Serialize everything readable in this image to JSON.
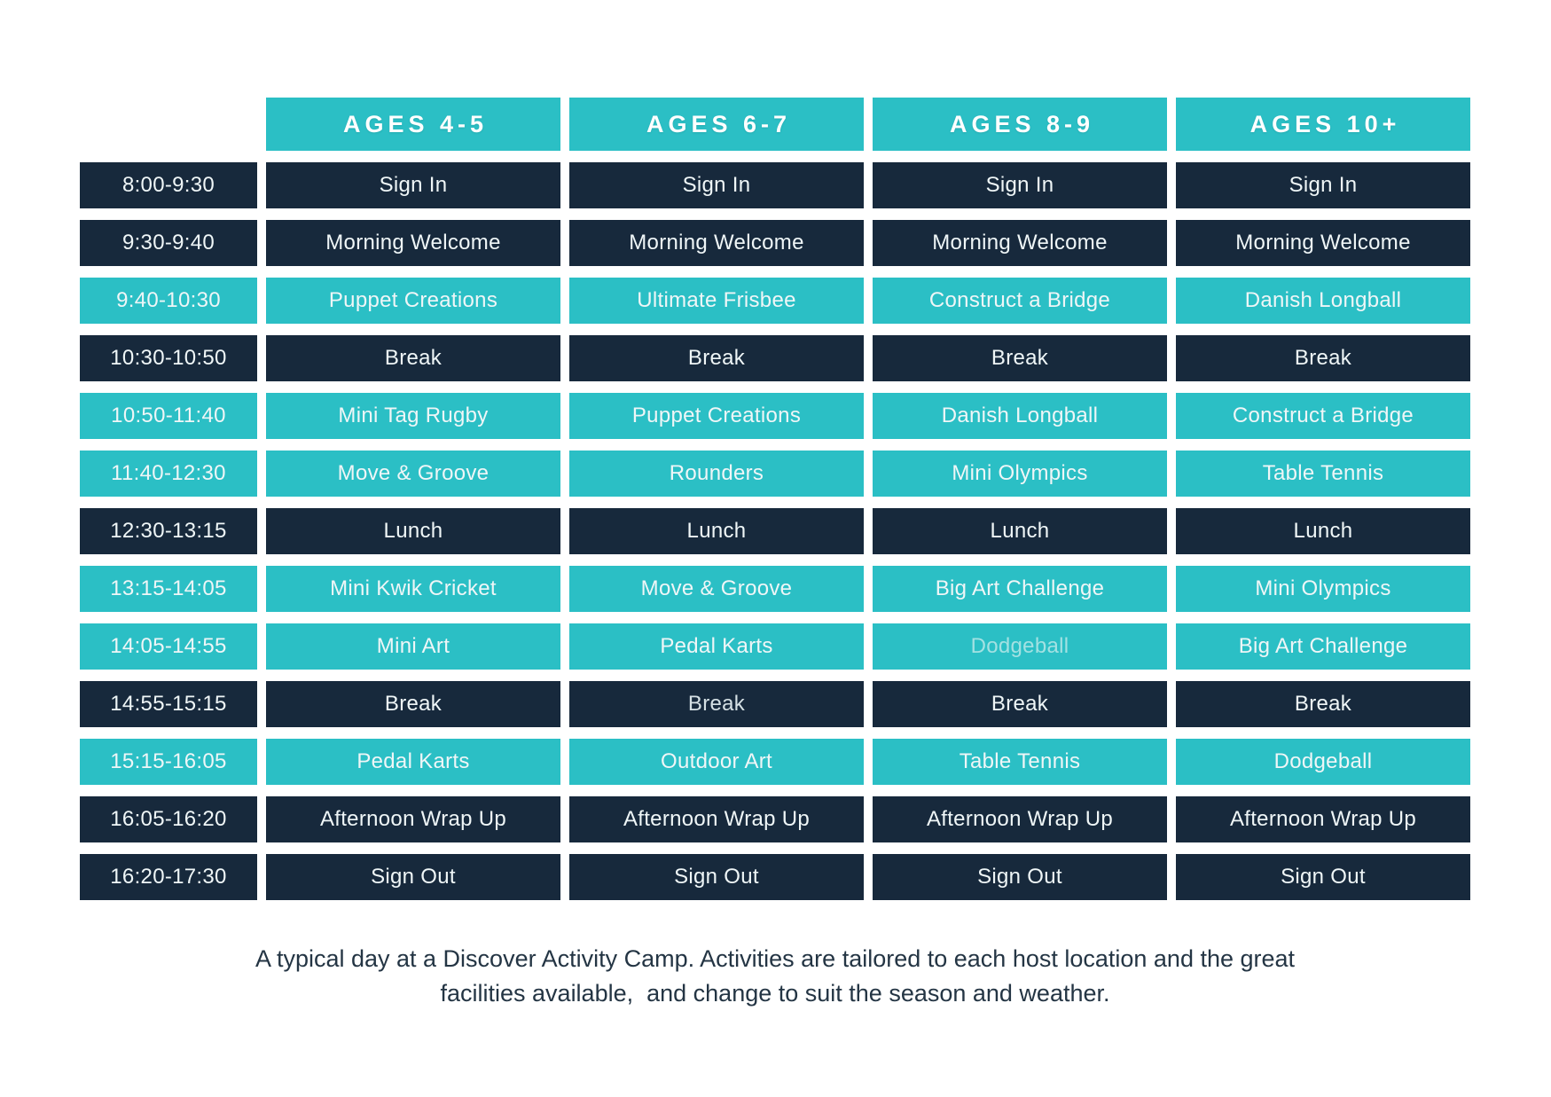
{
  "table": {
    "age_group_headers": [
      "AGES 4-5",
      "AGES 6-7",
      "AGES 8-9",
      "AGES 10+"
    ],
    "rows": [
      {
        "time": "8:00-9:30",
        "variant": "dark",
        "cells": [
          "Sign In",
          "Sign In",
          "Sign In",
          "Sign In"
        ]
      },
      {
        "time": "9:30-9:40",
        "variant": "dark",
        "cells": [
          "Morning Welcome",
          "Morning Welcome",
          "Morning Welcome",
          "Morning Welcome"
        ]
      },
      {
        "time": "9:40-10:30",
        "variant": "teal",
        "cells": [
          "Puppet Creations",
          "Ultimate Frisbee",
          "Construct a Bridge",
          "Danish Longball"
        ]
      },
      {
        "time": "10:30-10:50",
        "variant": "dark",
        "cells": [
          "Break",
          "Break",
          "Break",
          "Break"
        ]
      },
      {
        "time": "10:50-11:40",
        "variant": "teal",
        "cells": [
          "Mini Tag Rugby",
          "Puppet Creations",
          "Danish Longball",
          "Construct a Bridge"
        ]
      },
      {
        "time": "11:40-12:30",
        "variant": "teal",
        "cells": [
          "Move & Groove",
          "Rounders",
          "Mini Olympics",
          "Table Tennis"
        ]
      },
      {
        "time": "12:30-13:15",
        "variant": "dark",
        "cells": [
          "Lunch",
          "Lunch",
          "Lunch",
          "Lunch"
        ]
      },
      {
        "time": "13:15-14:05",
        "variant": "teal",
        "cells": [
          "Mini Kwik Cricket",
          "Move & Groove",
          "Big Art Challenge",
          "Mini Olympics"
        ]
      },
      {
        "time": "14:05-14:55",
        "variant": "teal",
        "cells": [
          "Mini Art",
          "Pedal Karts",
          {
            "text": "Dodgeball",
            "muted": true
          },
          "Big Art Challenge"
        ]
      },
      {
        "time": "14:55-15:15",
        "variant": "dark",
        "cells": [
          "Break",
          {
            "text": "Break",
            "muted": true
          },
          "Break",
          "Break"
        ]
      },
      {
        "time": "15:15-16:05",
        "variant": "teal",
        "cells": [
          "Pedal Karts",
          "Outdoor Art",
          "Table Tennis",
          "Dodgeball"
        ]
      },
      {
        "time": "16:05-16:20",
        "variant": "dark",
        "cells": [
          "Afternoon Wrap Up",
          "Afternoon Wrap Up",
          "Afternoon Wrap Up",
          "Afternoon Wrap Up"
        ]
      },
      {
        "time": "16:20-17:30",
        "variant": "dark",
        "cells": [
          "Sign Out",
          "Sign Out",
          "Sign Out",
          "Sign Out"
        ]
      }
    ]
  },
  "footer": {
    "line1": "A typical day at a Discover Activity Camp. Activities are tailored to each host location and the great",
    "line2": "facilities available,  and change to suit the season and weather."
  },
  "colors": {
    "teal": "#2bbfc5",
    "navy": "#17293c",
    "text_light": "#eff6f7",
    "header_text": "#ffffff",
    "muted_on_teal": "#a3e1e2",
    "muted_on_navy": "#d5e0e4",
    "caption_text": "#243544",
    "background": "#ffffff"
  }
}
